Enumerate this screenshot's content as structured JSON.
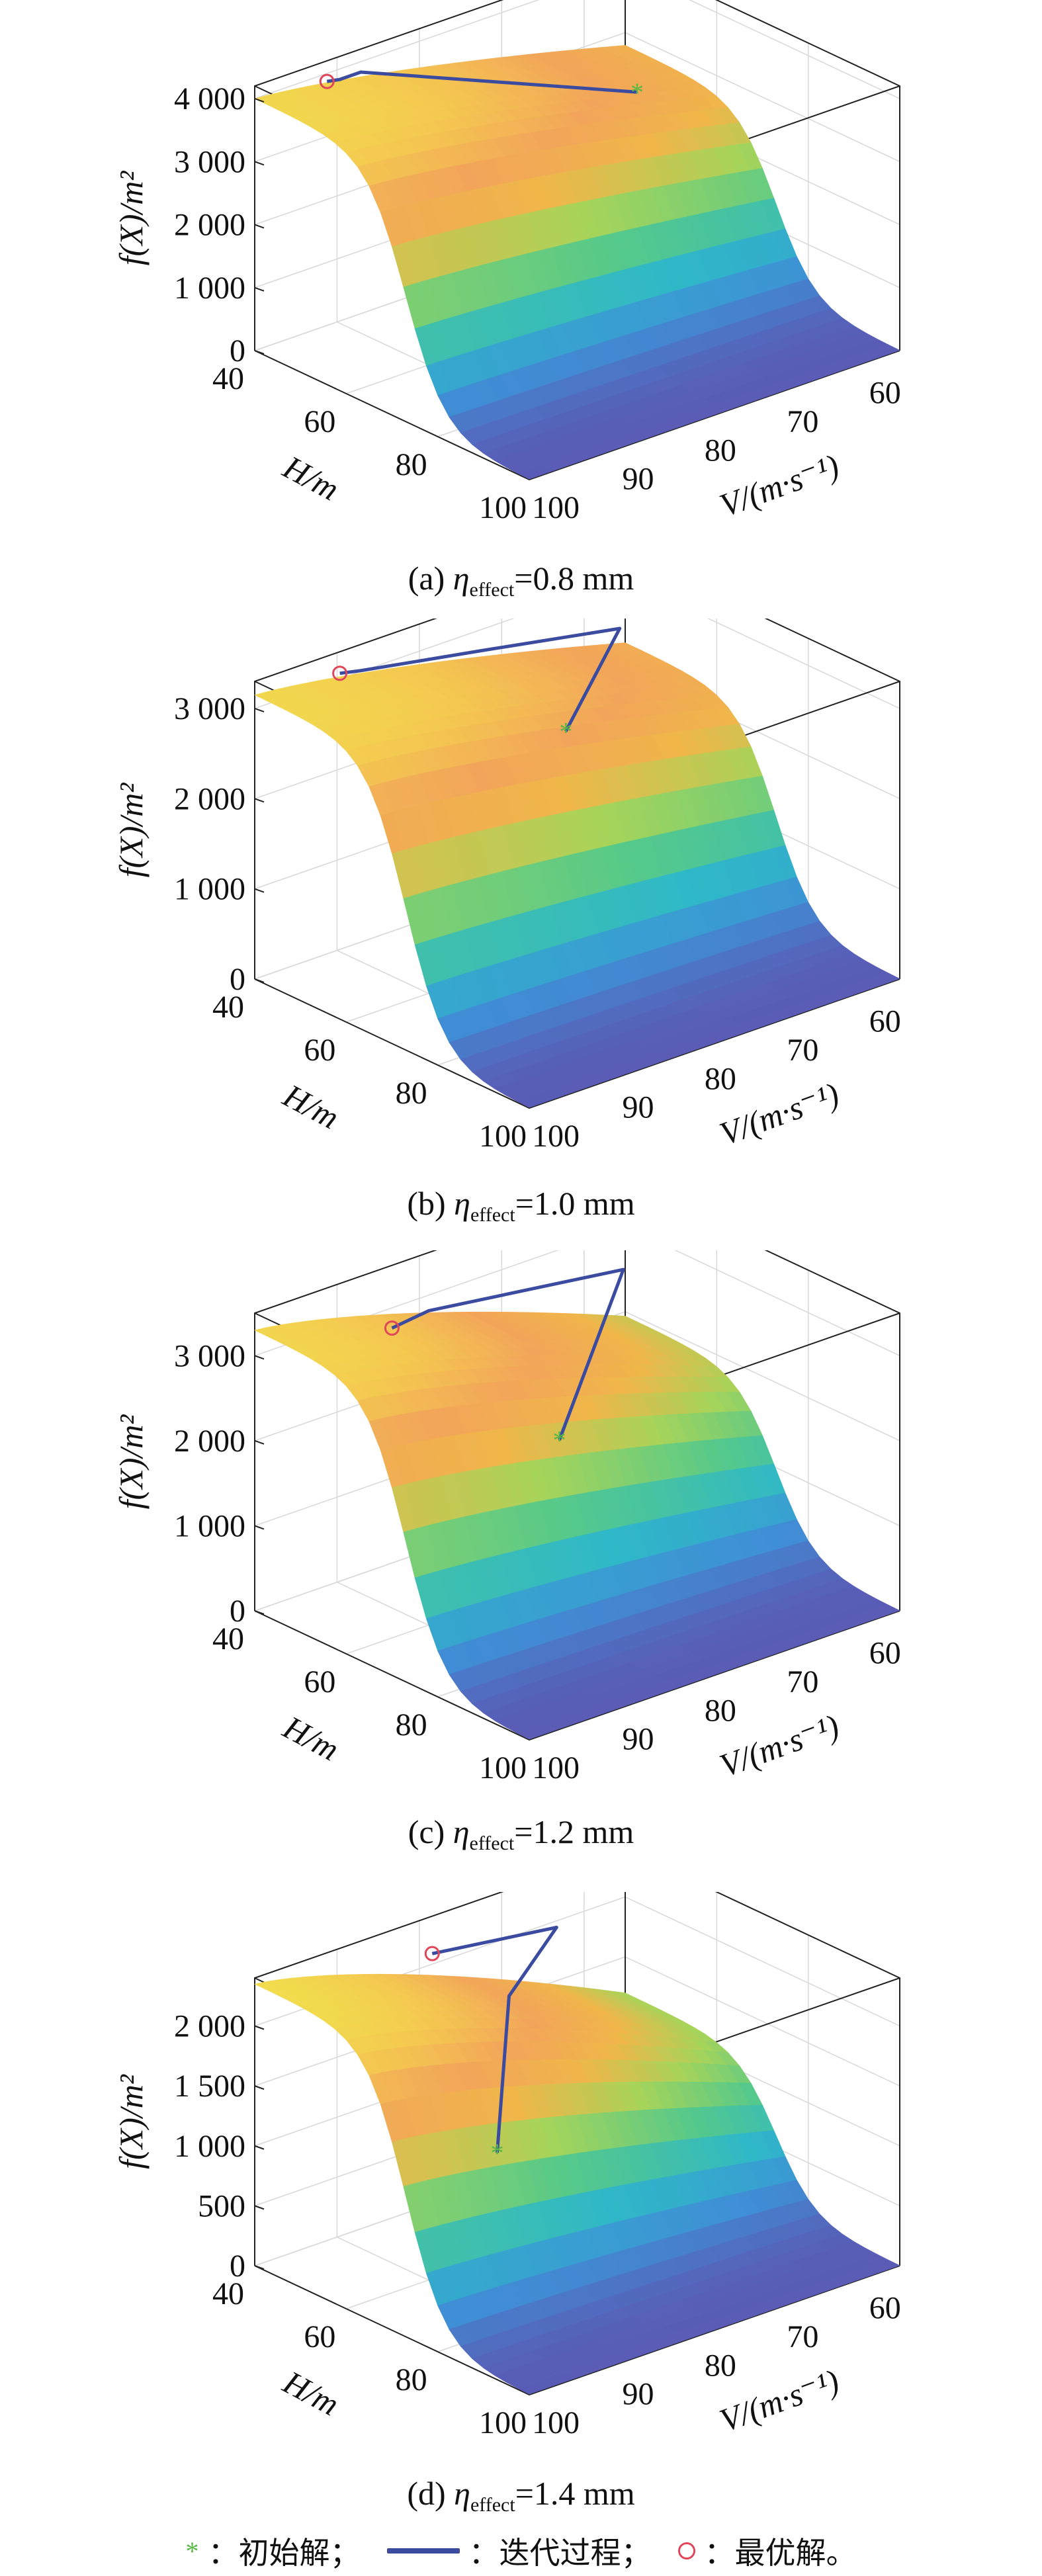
{
  "chart_data": [
    {
      "type": "surface3d",
      "caption": "(a) ηeffect=0.8 mm",
      "caption_parts": {
        "letter": "(a) ",
        "symbol": "η",
        "subscript": "effect",
        "rest": "=0.8 mm"
      },
      "zlabel": "f(X)/m²",
      "zlabel_parts": {
        "f": "f",
        "open": "(",
        "X": "X",
        "close": ")/m",
        "sup": "2"
      },
      "ylabel": "H/m",
      "xlabel": "V/(m·s⁻¹)",
      "z_ticks": [
        "0",
        "1 000",
        "2 000",
        "3 000",
        "4 000"
      ],
      "h_ticks": [
        "40",
        "60",
        "80",
        "100"
      ],
      "v_ticks": [
        "60",
        "70",
        "80",
        "90",
        "100"
      ],
      "zlim": [
        0,
        4200
      ],
      "hlim": [
        40,
        100
      ],
      "vlim": [
        55,
        100
      ],
      "ridge_value": 4000,
      "edge_value": 2800,
      "iteration_path": [
        {
          "H": 57,
          "V": 63,
          "f": 3000
        },
        {
          "H": 47,
          "V": 91,
          "f": 4250
        },
        {
          "H": 46,
          "V": 93,
          "f": 4190
        },
        {
          "H": 45,
          "V": 94,
          "f": 4170
        }
      ],
      "initial_solution": {
        "H": 57,
        "V": 63,
        "f": 3000
      },
      "optimal_solution": {
        "H": 45,
        "V": 94,
        "f": 4170
      }
    },
    {
      "type": "surface3d",
      "caption": "(b) ηeffect=1.0 mm",
      "caption_parts": {
        "letter": "(b) ",
        "symbol": "η",
        "subscript": "effect",
        "rest": "=1.0 mm"
      },
      "zlabel": "f(X)/m²",
      "zlabel_parts": {
        "f": "f",
        "open": "(",
        "X": "X",
        "close": ")/m",
        "sup": "2"
      },
      "ylabel": "H/m",
      "xlabel": "V/(m·s⁻¹)",
      "z_ticks": [
        "0",
        "1 000",
        "2 000",
        "3 000"
      ],
      "h_ticks": [
        "40",
        "60",
        "80",
        "100"
      ],
      "v_ticks": [
        "60",
        "70",
        "80",
        "90",
        "100"
      ],
      "zlim": [
        0,
        3300
      ],
      "hlim": [
        40,
        100
      ],
      "vlim": [
        55,
        100
      ],
      "ridge_value": 3150,
      "edge_value": 2300,
      "iteration_path": [
        {
          "H": 63,
          "V": 75,
          "f": 2500
        },
        {
          "H": 55,
          "V": 64,
          "f": 3100
        },
        {
          "H": 50,
          "V": 78,
          "f": 3180
        },
        {
          "H": 47,
          "V": 91,
          "f": 3300
        },
        {
          "H": 46,
          "V": 93,
          "f": 3310
        }
      ],
      "initial_solution": {
        "H": 63,
        "V": 75,
        "f": 2500
      },
      "optimal_solution": {
        "H": 46,
        "V": 93,
        "f": 3310
      }
    },
    {
      "type": "surface3d",
      "caption": "(c) ηeffect=1.2 mm",
      "caption_parts": {
        "letter": "(c) ",
        "symbol": "η",
        "subscript": "effect",
        "rest": "=1.2 mm"
      },
      "zlabel": "f(X)/m²",
      "zlabel_parts": {
        "f": "f",
        "open": "(",
        "X": "X",
        "close": ")/m",
        "sup": "2"
      },
      "ylabel": "H/m",
      "xlabel": "V/(m·s⁻¹)",
      "z_ticks": [
        "0",
        "1 000",
        "2 000",
        "3 000"
      ],
      "h_ticks": [
        "40",
        "60",
        "80",
        "100"
      ],
      "v_ticks": [
        "60",
        "70",
        "80",
        "90",
        "100"
      ],
      "zlim": [
        0,
        3500
      ],
      "hlim": [
        40,
        100
      ],
      "vlim": [
        55,
        100
      ],
      "ridge_value": 3300,
      "edge_value": 1950,
      "iteration_path": [
        {
          "H": 67,
          "V": 78,
          "f": 1950
        },
        {
          "H": 54,
          "V": 63,
          "f": 3120
        },
        {
          "H": 51,
          "V": 85,
          "f": 3300
        },
        {
          "H": 52,
          "V": 90,
          "f": 3290
        }
      ],
      "initial_solution": {
        "H": 67,
        "V": 78,
        "f": 1950
      },
      "optimal_solution": {
        "H": 52,
        "V": 90,
        "f": 3290
      }
    },
    {
      "type": "surface3d",
      "caption": "(d) ηeffect=1.4 mm",
      "caption_parts": {
        "letter": "(d) ",
        "symbol": "η",
        "subscript": "effect",
        "rest": "=1.4 mm"
      },
      "zlabel": "f(X)/m²",
      "zlabel_parts": {
        "f": "f",
        "open": "(",
        "X": "X",
        "close": ")/m",
        "sup": "2"
      },
      "ylabel": "H/m",
      "xlabel": "V/(m·s⁻¹)",
      "z_ticks": [
        "0",
        "500",
        "1 000",
        "1 500",
        "2 000"
      ],
      "h_ticks": [
        "40",
        "60",
        "80",
        "100"
      ],
      "v_ticks": [
        "60",
        "70",
        "80",
        "90",
        "100"
      ],
      "zlim": [
        0,
        2400
      ],
      "hlim": [
        40,
        100
      ],
      "vlim": [
        55,
        100
      ],
      "ridge_value": 2350,
      "edge_value": 1200,
      "iteration_path": [
        {
          "H": 66,
          "V": 85,
          "f": 1050
        },
        {
          "H": 56,
          "V": 78,
          "f": 2010
        },
        {
          "H": 52,
          "V": 70,
          "f": 2320
        },
        {
          "H": 50,
          "V": 84,
          "f": 2400
        }
      ],
      "initial_solution": {
        "H": 66,
        "V": 85,
        "f": 1050
      },
      "optimal_solution": {
        "H": 50,
        "V": 84,
        "f": 2400
      }
    }
  ],
  "legend": {
    "initial_label": "：初始解；",
    "path_label": "：迭代过程；",
    "optimal_label": "：最优解。",
    "initial_symbol": "*",
    "colors": {
      "initial": "#57b845",
      "path": "#3a4ba0",
      "optimal": "#e0455a"
    }
  },
  "colormap": [
    "#5a5bb5",
    "#3f8fd6",
    "#2fb8c8",
    "#56c98a",
    "#a6d45a",
    "#f0b64a",
    "#f2a55a",
    "#f4c850",
    "#f1e04c"
  ]
}
